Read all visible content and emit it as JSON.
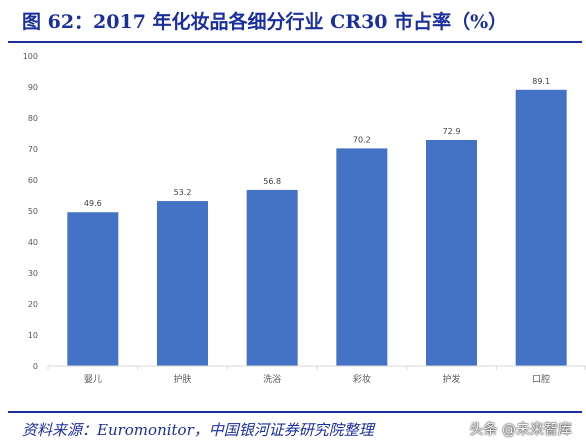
{
  "title": "图 62：2017 年化妆品各细分行业 CR30 市占率（%）",
  "source": "资料来源：Euromonitor，中国银河证券研究院整理",
  "watermark": "头条 @未来智库",
  "colors": {
    "bar": "#4472C4",
    "title": "#1a2f9c",
    "axis_text": "#595959",
    "grid": "#d9d9d9"
  },
  "chart_data": {
    "type": "bar",
    "categories": [
      "婴儿",
      "护肤",
      "洗浴",
      "彩妆",
      "护发",
      "口腔"
    ],
    "values": [
      49.6,
      53.2,
      56.8,
      70.2,
      72.9,
      89.1
    ],
    "value_labels": [
      "49.6",
      "53.2",
      "56.8",
      "70.2",
      "72.9",
      "89.1"
    ],
    "yticks": [
      "0",
      "10",
      "20",
      "30",
      "40",
      "50",
      "60",
      "70",
      "80",
      "90",
      "100"
    ],
    "ylim": [
      0,
      100
    ],
    "xlabel": "",
    "ylabel": "",
    "grid": false,
    "legend": "none"
  }
}
